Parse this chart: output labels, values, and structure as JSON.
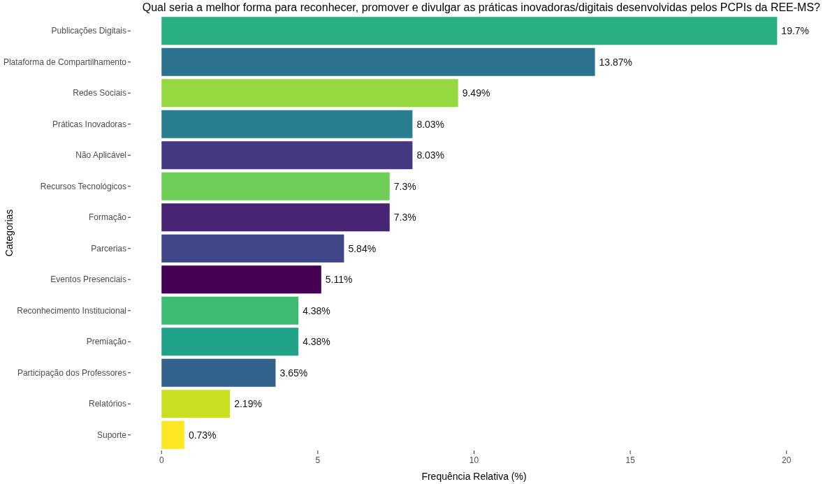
{
  "chart_data": {
    "type": "bar",
    "orientation": "horizontal",
    "title": "Qual seria a melhor forma para reconhecer, promover e divulgar as práticas inovadoras/digitais desenvolvidas pelos PCPIs da REE-MS?",
    "xlabel": "Frequência Relativa (%)",
    "ylabel": "Categorias",
    "categories": [
      "Publicações Digitais",
      "Plataforma de Compartilhamento",
      "Redes Sociais",
      "Práticas Inovadoras",
      "Não Aplicável",
      "Recursos Tecnológicos",
      "Formação",
      "Parcerias",
      "Eventos Presenciais",
      "Reconhecimento Institucional",
      "Premiação",
      "Participação dos Professores",
      "Relatórios",
      "Suporte"
    ],
    "values": [
      19.7,
      13.87,
      9.49,
      8.03,
      8.03,
      7.3,
      7.3,
      5.84,
      5.11,
      4.38,
      4.38,
      3.65,
      2.19,
      0.73
    ],
    "colors": [
      "#29af7f",
      "#2c728e",
      "#95d840",
      "#287d8e",
      "#453781",
      "#6ece58",
      "#482475",
      "#3f4788",
      "#440154",
      "#3dbc74",
      "#20a386",
      "#33638d",
      "#c8e020",
      "#fde725"
    ],
    "value_labels": [
      "19.7%",
      "13.87%",
      "9.49%",
      "8.03%",
      "8.03%",
      "7.3%",
      "7.3%",
      "5.84%",
      "5.11%",
      "4.38%",
      "4.38%",
      "3.65%",
      "2.19%",
      "0.73%"
    ],
    "xlim": [
      0,
      20
    ],
    "xticks": [
      0,
      5,
      10,
      15,
      20
    ],
    "grid": false
  }
}
